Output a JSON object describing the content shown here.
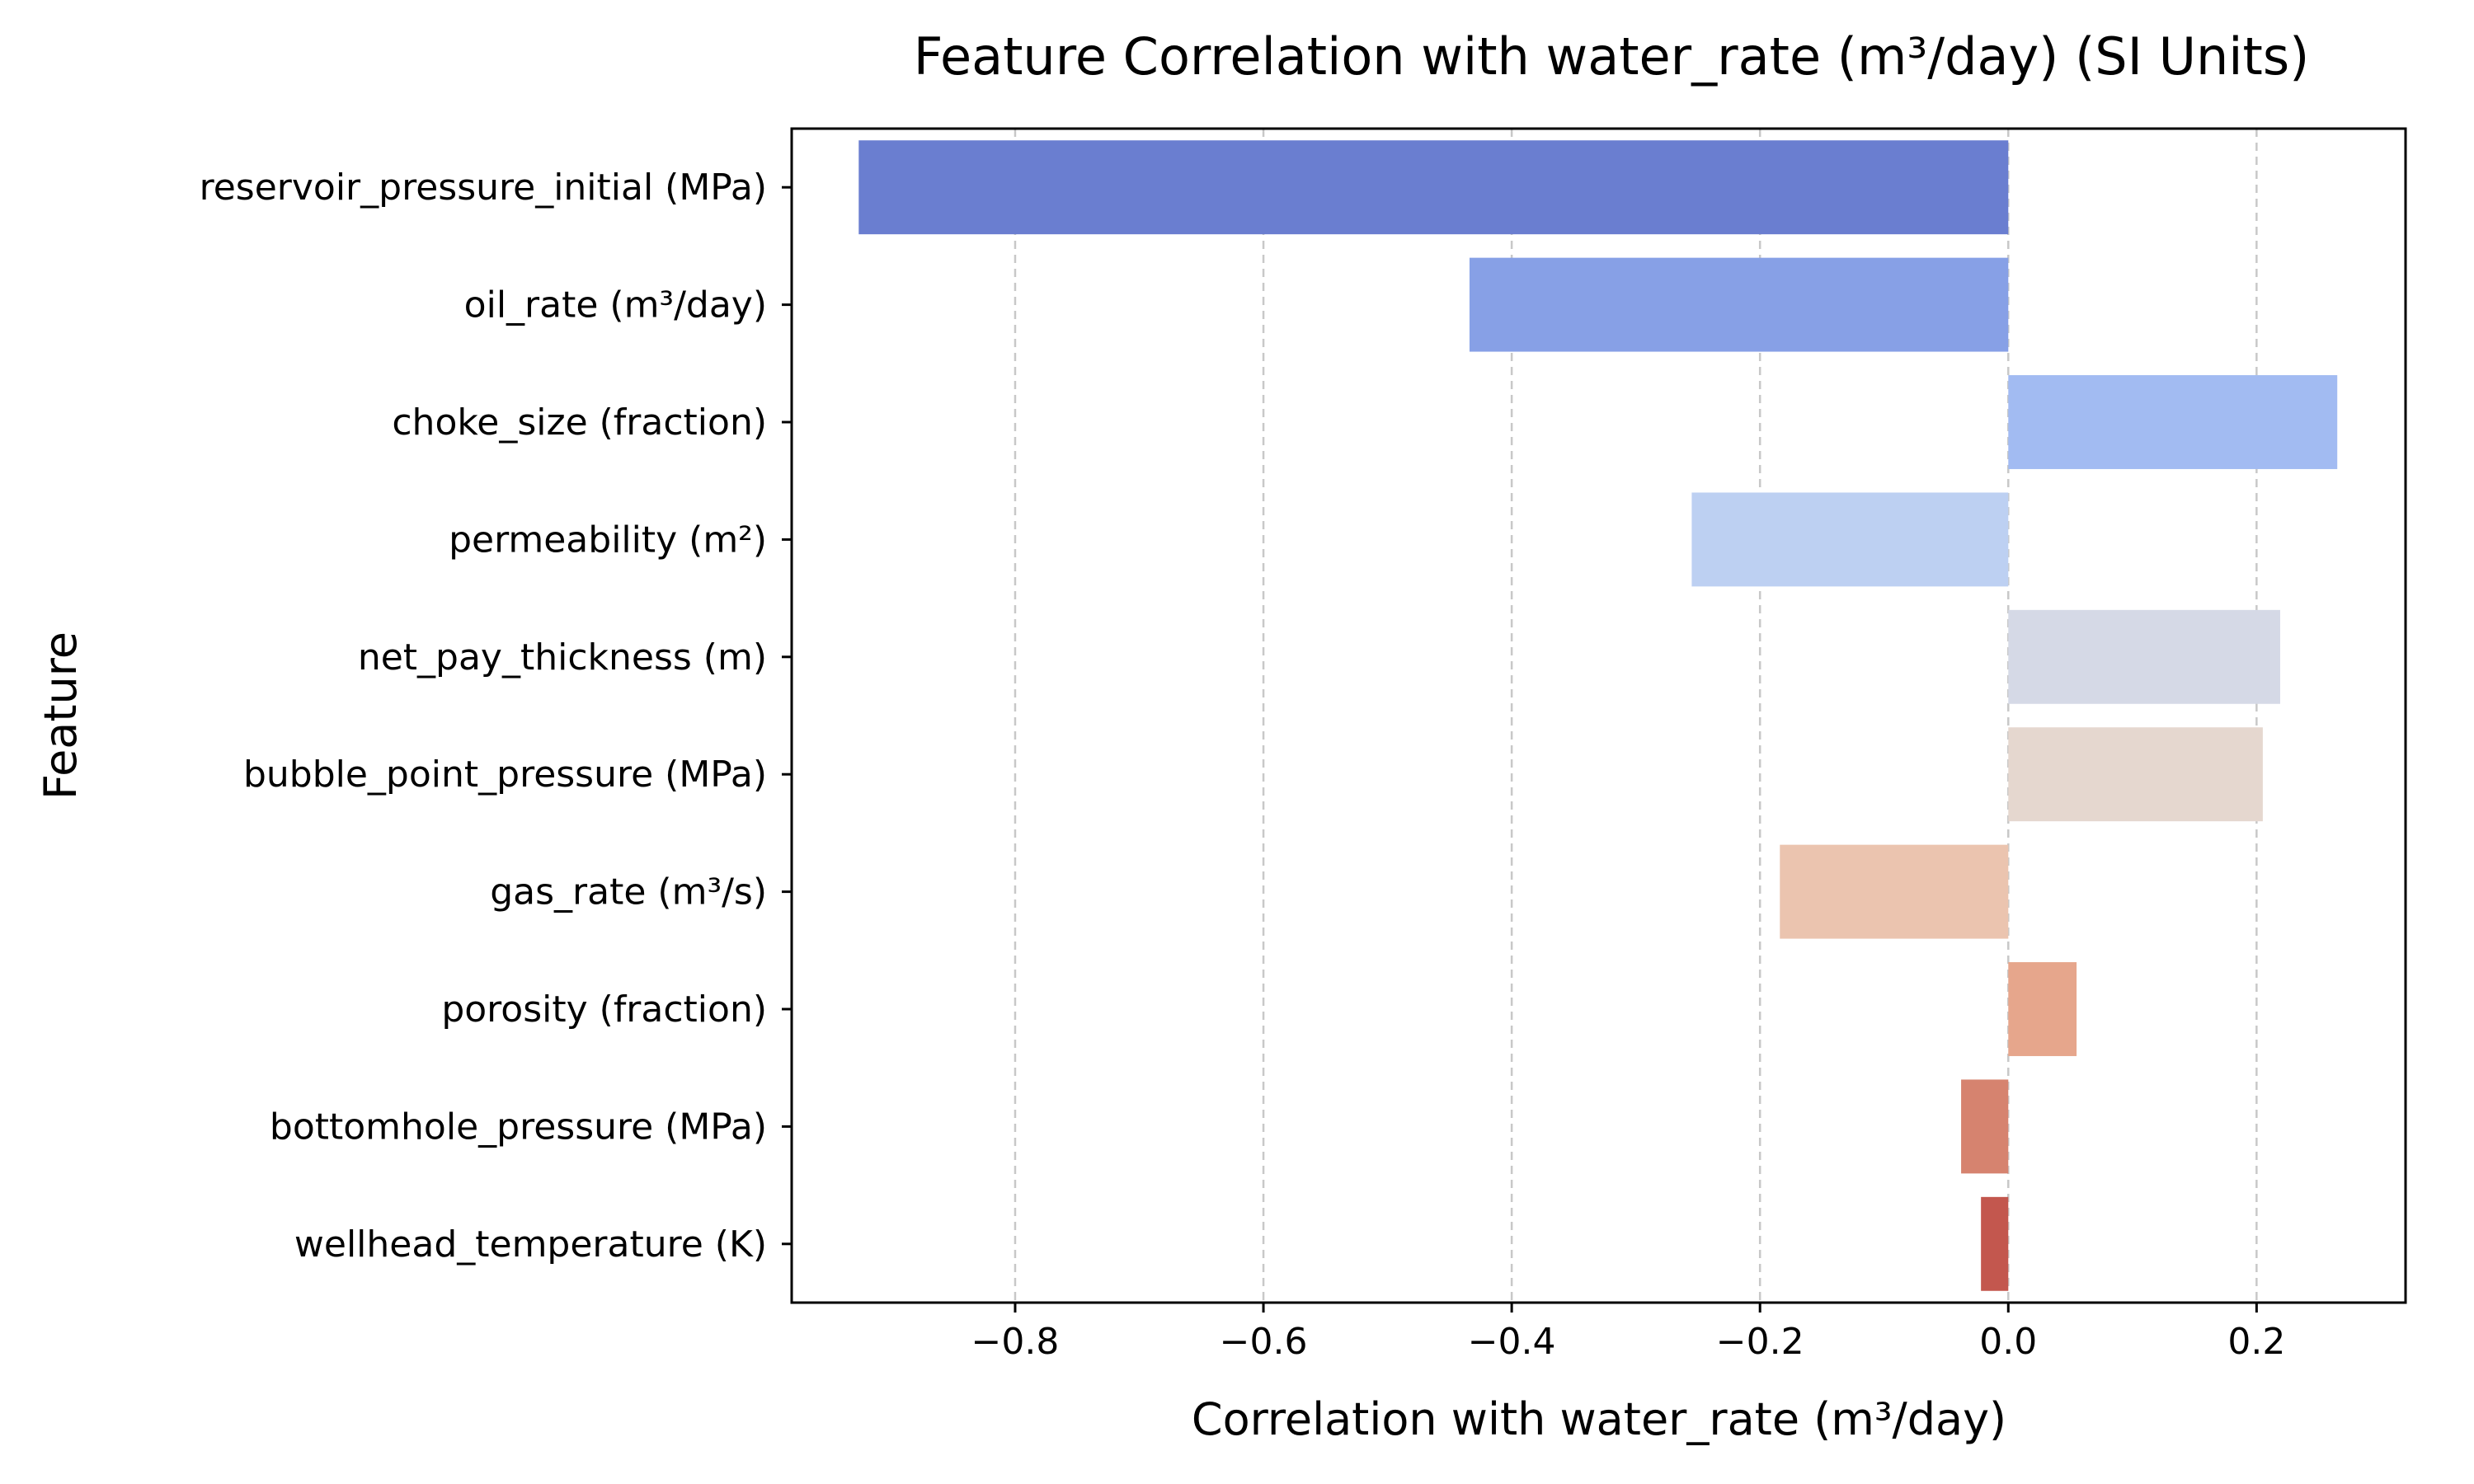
{
  "chart_data": {
    "type": "bar",
    "orientation": "horizontal",
    "title": "Feature Correlation with water_rate (m³/day) (SI Units)",
    "xlabel": "Correlation with water_rate (m³/day)",
    "ylabel": "Feature",
    "xlim": [
      -0.98,
      0.32
    ],
    "xticks": [
      -0.8,
      -0.6,
      -0.4,
      -0.2,
      0.0,
      0.2
    ],
    "xtick_labels": [
      "−0.8",
      "−0.6",
      "−0.4",
      "−0.2",
      "0.0",
      "0.2"
    ],
    "grid": "x, dashed",
    "categories": [
      "reservoir_pressure_initial (MPa)",
      "oil_rate (m³/day)",
      "choke_size (fraction)",
      "permeability (m²)",
      "net_pay_thickness (m)",
      "bubble_point_pressure (MPa)",
      "gas_rate (m³/s)",
      "porosity (fraction)",
      "bottomhole_pressure (MPa)",
      "wellhead_temperature (K)"
    ],
    "values": [
      -0.926,
      -0.434,
      0.265,
      -0.255,
      0.219,
      0.205,
      -0.184,
      0.055,
      -0.038,
      -0.022
    ],
    "colors": [
      "#6a7ed0",
      "#87a0e6",
      "#a2bbf2",
      "#bdd0f2",
      "#d5d9e6",
      "#e5d7cf",
      "#ebc4af",
      "#e6a68c",
      "#d6836f",
      "#c3574e"
    ]
  }
}
